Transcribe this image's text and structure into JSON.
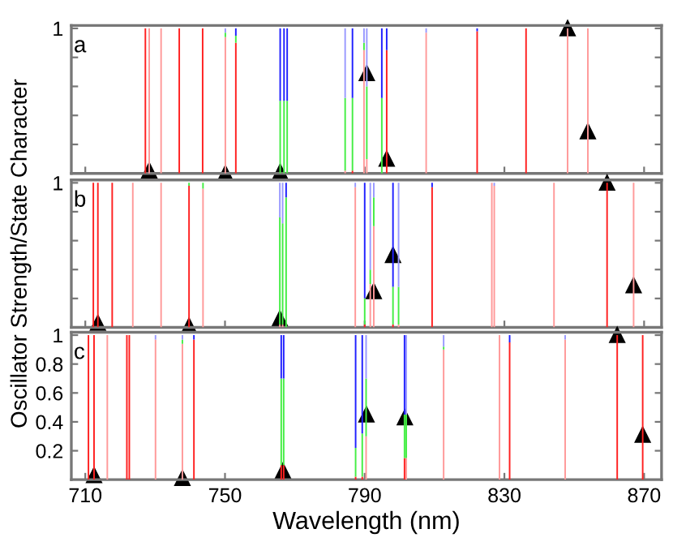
{
  "chart_data": [
    {
      "type": "bar",
      "stacked": true,
      "xlim": [
        706,
        875
      ],
      "ylim": [
        0,
        1.02
      ],
      "xticks": [
        710,
        750,
        790,
        830,
        870
      ],
      "yticks": [
        {
          "value": 0.2,
          "label": null
        },
        {
          "value": 0.4,
          "label": null
        },
        {
          "value": 0.6,
          "label": null
        },
        {
          "value": 0.8,
          "label": null
        },
        1
      ],
      "tick_labels": "y",
      "annotations": [
        "a"
      ],
      "x": [
        727.2,
        728.3,
        731.7,
        736.9,
        743.6,
        750.1,
        753.1,
        765.8,
        766.9,
        767.8,
        784.4,
        786.5,
        789.8,
        790.6,
        794.9,
        796.3,
        807.6,
        822.2,
        836.2,
        848.1,
        853.9
      ],
      "series": [
        {
          "colors": [
            "#ff2020",
            "#ff9999",
            "#ff9999",
            "#ff2020",
            "#ff2020",
            "#ff9999",
            "#ff2020",
            "#ff2020",
            "#ff2020",
            "#ff2020",
            "#ff9999",
            "#ff2020",
            "#ff9999",
            "#ff9999",
            "#ff2020",
            "#ff2020",
            "#ff9999",
            "#ff2020",
            "#ff2020",
            "#ff9999",
            "#ff9999"
          ],
          "values": [
            1,
            1,
            1,
            1,
            1,
            0.94,
            0.9,
            0,
            0,
            0,
            0.02,
            0.02,
            0.85,
            0.1,
            0,
            0.85,
            0.97,
            0.98,
            1,
            1,
            1
          ]
        },
        {
          "color": "#44ee44",
          "values": [
            0,
            0,
            0,
            0,
            0,
            0.03,
            0.05,
            0.5,
            0.5,
            0.5,
            0.5,
            0.5,
            0.05,
            0.5,
            0.52,
            0,
            0,
            0,
            0,
            0,
            0
          ]
        },
        {
          "colors": [
            "#2020ff",
            "#2020ff",
            "#2020ff",
            "#2020ff",
            "#2020ff",
            "#9999ff",
            "#2020ff",
            "#2020ff",
            "#2020ff",
            "#2020ff",
            "#9999ff",
            "#2020ff",
            "#9999ff",
            "#9999ff",
            "#2020ff",
            "#2020ff",
            "#9999ff",
            "#2020ff",
            "#2020ff",
            "#2020ff",
            "#2020ff"
          ],
          "values": [
            0,
            0,
            0,
            0,
            0,
            0.03,
            0.05,
            0.5,
            0.5,
            0.5,
            0.48,
            0.48,
            0.1,
            0.4,
            0.48,
            0.15,
            0.03,
            0.02,
            0,
            0,
            0
          ]
        },
        {
          "type": "scatter",
          "color": "#000000",
          "marker": "triangle",
          "x": [
            728.3,
            750.1,
            765.8,
            790.6,
            796.3,
            848.1,
            853.9
          ],
          "values": [
            0.02,
            0,
            0.01,
            0.69,
            0.1,
            1,
            0.29
          ]
        }
      ]
    },
    {
      "type": "bar",
      "stacked": true,
      "xlim": [
        706,
        875
      ],
      "ylim": [
        0,
        1.02
      ],
      "xticks": [
        710,
        750,
        790,
        830,
        870
      ],
      "yticks": [
        {
          "value": 0.2,
          "label": null
        },
        {
          "value": 0.4,
          "label": null
        },
        {
          "value": 0.6,
          "label": null
        },
        {
          "value": 0.8,
          "label": null
        },
        1
      ],
      "tick_labels": "y",
      "annotations": [
        "b"
      ],
      "ylabel": "Oscillator Strength/State Character",
      "x": [
        712.3,
        713.6,
        717.7,
        723.6,
        731.7,
        739.7,
        743.7,
        765.7,
        766.5,
        767.5,
        787.3,
        790.0,
        791.6,
        792.6,
        798.1,
        799.7,
        809.3,
        826.4,
        827.1,
        844.2,
        859.4,
        867.0
      ],
      "series": [
        {
          "colors": [
            "#ff2020",
            "#ff2020",
            "#ff2020",
            "#ff9999",
            "#ff9999",
            "#ff2020",
            "#ff9999",
            "#ff9999",
            "#ff9999",
            "#ff2020",
            "#ff9999",
            "#ff2020",
            "#ff9999",
            "#ff9999",
            "#ff2020",
            "#ff9999",
            "#ff2020",
            "#ff9999",
            "#ff9999",
            "#ff9999",
            "#ff2020",
            "#ff9999"
          ],
          "values": [
            1,
            1,
            1,
            1,
            1,
            0.98,
            0.96,
            0.02,
            0.02,
            0,
            0.97,
            0.02,
            0.3,
            0.7,
            0.02,
            0.02,
            0.97,
            1,
            0.98,
            1,
            1,
            1
          ]
        },
        {
          "color": "#44ee44",
          "values": [
            0,
            0,
            0,
            0,
            0,
            0.02,
            0.04,
            0.74,
            0.7,
            0.9,
            0,
            0.18,
            0.1,
            0.2,
            0.26,
            0.26,
            0,
            0,
            0,
            0,
            0,
            0
          ]
        },
        {
          "colors": [
            "#2020ff",
            "#2020ff",
            "#2020ff",
            "#2020ff",
            "#2020ff",
            "#2020ff",
            "#2020ff",
            "#9999ff",
            "#9999ff",
            "#2020ff",
            "#9999ff",
            "#2020ff",
            "#9999ff",
            "#9999ff",
            "#2020ff",
            "#9999ff",
            "#2020ff",
            "#2020ff",
            "#9999ff",
            "#2020ff",
            "#2020ff",
            "#2020ff"
          ],
          "values": [
            0,
            0,
            0,
            0,
            0,
            0,
            0,
            0.24,
            0.28,
            0.1,
            0.03,
            0.8,
            0.6,
            0.1,
            0.72,
            0.72,
            0.03,
            0,
            0.02,
            0,
            0,
            0
          ]
        },
        {
          "type": "scatter",
          "color": "#000000",
          "marker": "triangle",
          "x": [
            713.6,
            739.7,
            765.7,
            792.6,
            798.1,
            859.4,
            867.0
          ],
          "values": [
            0.03,
            0.01,
            0.06,
            0.25,
            0.5,
            1,
            0.29
          ]
        }
      ]
    },
    {
      "type": "bar",
      "stacked": true,
      "xlim": [
        706,
        875
      ],
      "ylim": [
        0,
        1.02
      ],
      "xticks": [
        710,
        750,
        790,
        830,
        870
      ],
      "yticks": [
        0.2,
        0.4,
        0.6,
        0.8,
        1
      ],
      "annotations": [
        "c"
      ],
      "xlabel": "Wavelength (nm)",
      "x": [
        710.9,
        712.5,
        716.3,
        721.9,
        722.6,
        730.1,
        737.8,
        741.1,
        766.1,
        766.8,
        787.4,
        789.3,
        790.4,
        801.4,
        801.9,
        812.6,
        828.6,
        831.5,
        847.4,
        862.3,
        869.6
      ],
      "series": [
        {
          "colors": [
            "#ff2020",
            "#ff2020",
            "#ff9999",
            "#ff2020",
            "#ff2020",
            "#ff9999",
            "#ff9999",
            "#ff2020",
            "#ff2020",
            "#ff2020",
            "#ff2020",
            "#ff2020",
            "#ff9999",
            "#ff2020",
            "#ff9999",
            "#ff9999",
            "#ff9999",
            "#ff2020",
            "#ff9999",
            "#ff2020",
            "#ff2020"
          ],
          "values": [
            1,
            1,
            1,
            1,
            1,
            0.97,
            0.94,
            0.97,
            0.1,
            0.1,
            0.02,
            0.02,
            0.3,
            0.15,
            0.15,
            0.9,
            1,
            0.95,
            0.97,
            1,
            1
          ]
        },
        {
          "color": "#44ee44",
          "values": [
            0,
            0,
            0,
            0,
            0,
            0,
            0.03,
            0,
            0.6,
            0.6,
            0.2,
            0.3,
            0.4,
            0.3,
            0.3,
            0.02,
            0,
            0,
            0,
            0,
            0
          ]
        },
        {
          "colors": [
            "#2020ff",
            "#2020ff",
            "#2020ff",
            "#2020ff",
            "#2020ff",
            "#9999ff",
            "#9999ff",
            "#2020ff",
            "#2020ff",
            "#2020ff",
            "#2020ff",
            "#2020ff",
            "#9999ff",
            "#2020ff",
            "#9999ff",
            "#9999ff",
            "#2020ff",
            "#2020ff",
            "#9999ff",
            "#2020ff",
            "#2020ff"
          ],
          "values": [
            0,
            0,
            0,
            0,
            0,
            0.03,
            0.03,
            0.03,
            0.3,
            0.3,
            0.78,
            0.68,
            0.3,
            0.55,
            0.55,
            0.08,
            0,
            0.05,
            0.03,
            0,
            0
          ]
        },
        {
          "type": "scatter",
          "color": "#000000",
          "marker": "triangle",
          "x": [
            712.5,
            737.8,
            766.6,
            790.5,
            801.5,
            862.3,
            869.6
          ],
          "values": [
            0.03,
            0.01,
            0.06,
            0.45,
            0.43,
            1,
            0.31
          ]
        }
      ]
    }
  ]
}
